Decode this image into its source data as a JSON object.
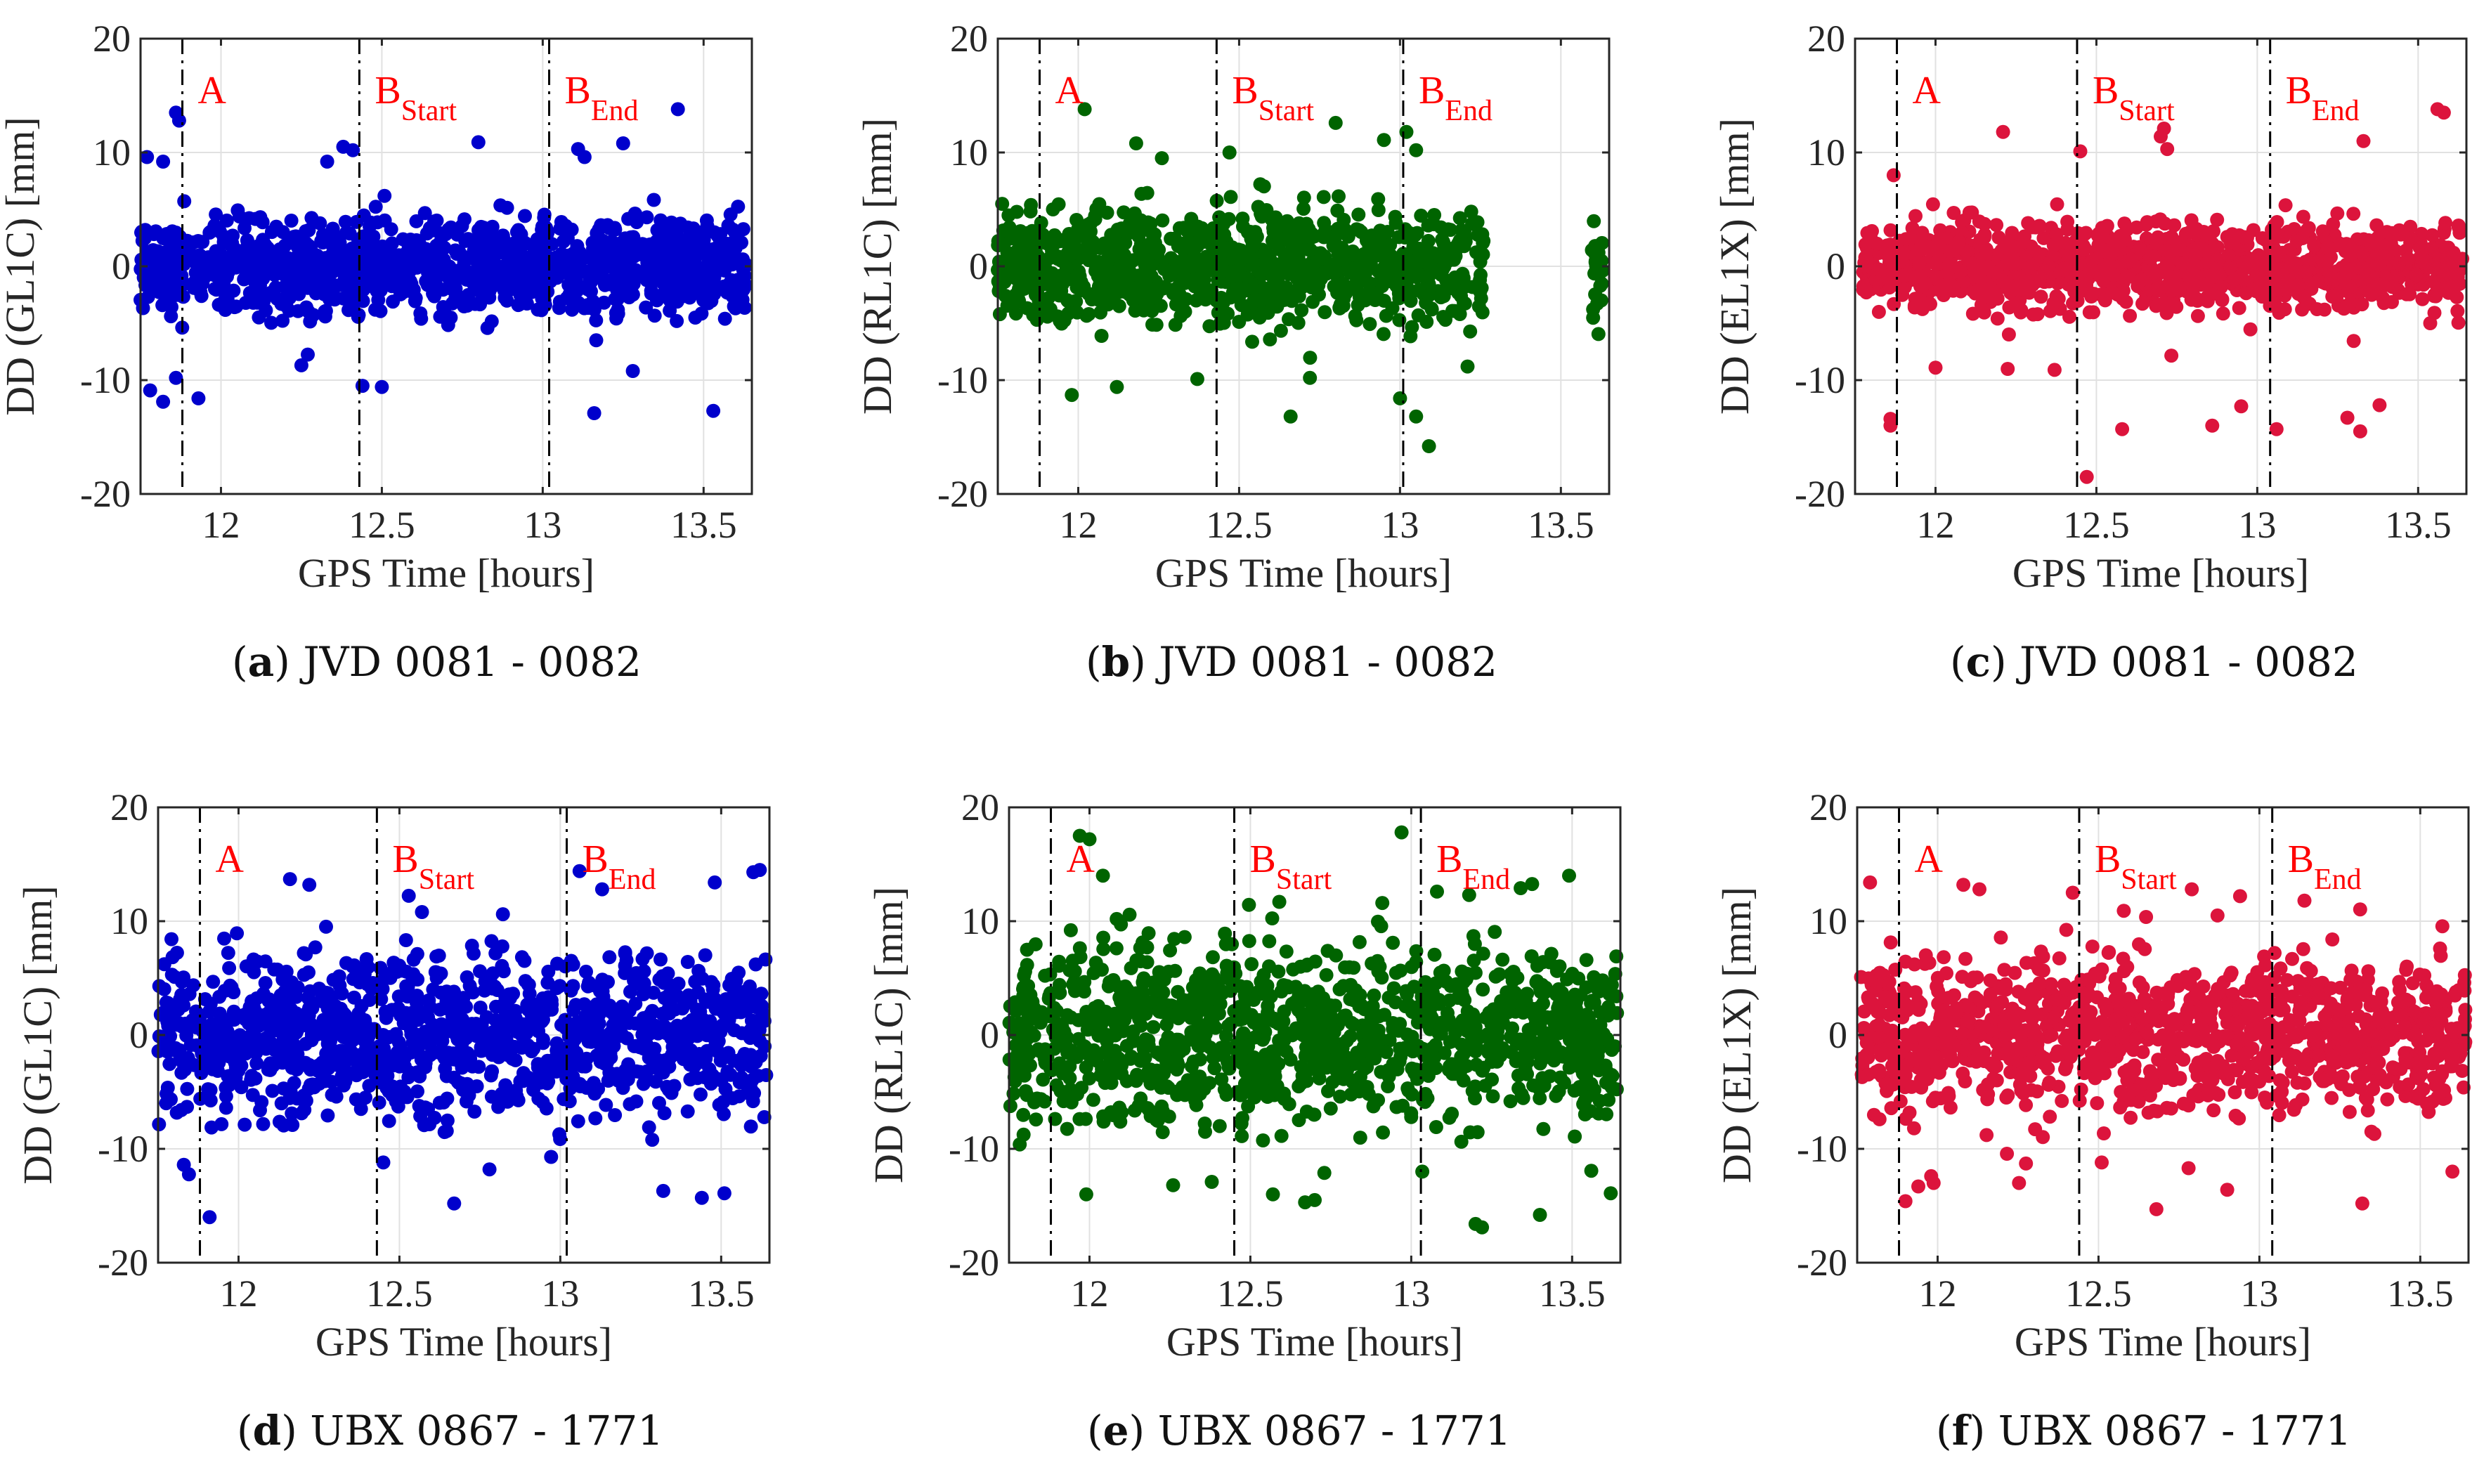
{
  "panels": [
    {
      "label": "a",
      "caption": "JVD 0081 - 0082",
      "chart_data": {
        "type": "scatter",
        "xlabel": "GPS Time [hours]",
        "ylabel": "DD (GL1C) [mm]",
        "xlim": [
          11.75,
          13.65
        ],
        "ylim": [
          -20,
          20
        ],
        "xticks": [
          12,
          12.5,
          13,
          13.5
        ],
        "yticks": [
          -20,
          -10,
          0,
          10,
          20
        ],
        "grid": true,
        "color": "#0000cc",
        "markers": [
          {
            "x": 11.88,
            "label": "A"
          },
          {
            "x": 12.43,
            "label": "B",
            "sub": "Start"
          },
          {
            "x": 13.02,
            "label": "B",
            "sub": "End"
          }
        ],
        "series_ranges": [
          {
            "from": 11.75,
            "to": 13.63
          }
        ],
        "spread": {
          "core": 2.0,
          "max": 13
        },
        "outliers": [
          [
            11.86,
            13.5
          ],
          [
            11.87,
            12.8
          ],
          [
            12.38,
            10.5
          ],
          [
            12.41,
            10.2
          ],
          [
            12.33,
            9.2
          ],
          [
            12.8,
            10.9
          ],
          [
            13.42,
            13.8
          ],
          [
            13.11,
            10.3
          ],
          [
            13.13,
            9.6
          ],
          [
            13.25,
            10.8
          ],
          [
            11.77,
            9.6
          ],
          [
            11.82,
            9.2
          ],
          [
            11.78,
            -10.9
          ],
          [
            11.82,
            -11.9
          ],
          [
            11.86,
            -9.8
          ],
          [
            11.93,
            -11.6
          ],
          [
            12.44,
            -10.5
          ],
          [
            12.5,
            -10.6
          ],
          [
            13.16,
            -12.9
          ],
          [
            13.53,
            -12.7
          ],
          [
            13.28,
            -9.2
          ],
          [
            12.25,
            -8.7
          ]
        ],
        "seed": 11
      }
    },
    {
      "label": "b",
      "caption": "JVD 0081 - 0082",
      "chart_data": {
        "type": "scatter",
        "xlabel": "GPS Time [hours]",
        "ylabel": "DD (RL1C) [mm]",
        "xlim": [
          11.75,
          13.65
        ],
        "ylim": [
          -20,
          20
        ],
        "xticks": [
          12,
          12.5,
          13,
          13.5
        ],
        "yticks": [
          -20,
          -10,
          0,
          10,
          20
        ],
        "grid": true,
        "color": "#006400",
        "markers": [
          {
            "x": 11.88,
            "label": "A"
          },
          {
            "x": 12.43,
            "label": "B",
            "sub": "Start"
          },
          {
            "x": 13.01,
            "label": "B",
            "sub": "End"
          }
        ],
        "series_ranges": [
          {
            "from": 11.75,
            "to": 13.26
          },
          {
            "from": 13.59,
            "to": 13.63
          }
        ],
        "spread": {
          "core": 2.4,
          "max": 13
        },
        "outliers": [
          [
            12.02,
            13.8
          ],
          [
            12.8,
            12.6
          ],
          [
            12.95,
            11.1
          ],
          [
            13.02,
            11.8
          ],
          [
            13.05,
            10.2
          ],
          [
            12.18,
            10.8
          ],
          [
            12.26,
            9.5
          ],
          [
            12.47,
            10.0
          ],
          [
            13.09,
            -15.8
          ],
          [
            13.05,
            -13.2
          ],
          [
            13.0,
            -11.6
          ],
          [
            12.66,
            -13.2
          ],
          [
            12.37,
            -9.9
          ],
          [
            11.98,
            -11.3
          ],
          [
            12.12,
            -10.6
          ],
          [
            12.72,
            -9.8
          ],
          [
            13.21,
            -8.8
          ]
        ],
        "seed": 23
      }
    },
    {
      "label": "c",
      "caption": "JVD 0081 - 0082",
      "chart_data": {
        "type": "scatter",
        "xlabel": "GPS Time [hours]",
        "ylabel": "DD (EL1X) [mm]",
        "xlim": [
          11.75,
          13.65
        ],
        "ylim": [
          -20,
          20
        ],
        "xticks": [
          12,
          12.5,
          13,
          13.5
        ],
        "yticks": [
          -20,
          -10,
          0,
          10,
          20
        ],
        "grid": true,
        "color": "#dc143c",
        "markers": [
          {
            "x": 11.88,
            "label": "A"
          },
          {
            "x": 12.44,
            "label": "B",
            "sub": "Start"
          },
          {
            "x": 13.04,
            "label": "B",
            "sub": "End"
          }
        ],
        "series_ranges": [
          {
            "from": 11.77,
            "to": 13.64
          }
        ],
        "spread": {
          "core": 1.8,
          "max": 12
        },
        "outliers": [
          [
            12.21,
            11.8
          ],
          [
            12.45,
            10.1
          ],
          [
            12.7,
            11.4
          ],
          [
            12.72,
            10.3
          ],
          [
            13.33,
            11.0
          ],
          [
            13.56,
            13.8
          ],
          [
            13.58,
            13.5
          ],
          [
            11.87,
            8.0
          ],
          [
            12.71,
            12.1
          ],
          [
            12.47,
            -18.5
          ],
          [
            13.32,
            -14.5
          ],
          [
            13.06,
            -14.3
          ],
          [
            11.86,
            -14.0
          ],
          [
            11.86,
            -13.4
          ],
          [
            12.58,
            -14.3
          ],
          [
            12.95,
            -12.3
          ],
          [
            12.86,
            -14.0
          ],
          [
            13.38,
            -12.2
          ],
          [
            13.28,
            -13.3
          ],
          [
            12.0,
            -8.9
          ],
          [
            12.37,
            -9.1
          ]
        ],
        "seed": 37
      }
    },
    {
      "label": "d",
      "caption": "UBX 0867 - 1771",
      "chart_data": {
        "type": "scatter",
        "xlabel": "GPS Time [hours]",
        "ylabel": "DD (GL1C) [mm]",
        "xlim": [
          11.75,
          13.65
        ],
        "ylim": [
          -20,
          20
        ],
        "xticks": [
          12,
          12.5,
          13,
          13.5
        ],
        "yticks": [
          -20,
          -10,
          0,
          10,
          20
        ],
        "grid": true,
        "color": "#0000cc",
        "markers": [
          {
            "x": 11.88,
            "label": "A"
          },
          {
            "x": 12.43,
            "label": "B",
            "sub": "Start"
          },
          {
            "x": 13.02,
            "label": "B",
            "sub": "End"
          }
        ],
        "series_ranges": [
          {
            "from": 11.75,
            "to": 13.64
          }
        ],
        "spread": {
          "core": 3.4,
          "max": 14
        },
        "outliers": [
          [
            13.06,
            14.4
          ],
          [
            13.62,
            14.5
          ],
          [
            13.6,
            14.3
          ],
          [
            13.48,
            13.4
          ],
          [
            12.16,
            13.7
          ],
          [
            12.22,
            13.2
          ],
          [
            12.57,
            10.8
          ],
          [
            13.13,
            12.8
          ],
          [
            11.91,
            -16.0
          ],
          [
            12.67,
            -14.8
          ],
          [
            13.32,
            -13.7
          ],
          [
            13.44,
            -14.3
          ],
          [
            13.51,
            -13.9
          ],
          [
            11.83,
            -11.4
          ],
          [
            12.45,
            -11.2
          ],
          [
            12.78,
            -11.8
          ]
        ],
        "seed": 53
      }
    },
    {
      "label": "e",
      "caption": "UBX 0867 - 1771",
      "chart_data": {
        "type": "scatter",
        "xlabel": "GPS Time [hours]",
        "ylabel": "DD (RL1C) [mm]",
        "xlim": [
          11.75,
          13.65
        ],
        "ylim": [
          -20,
          20
        ],
        "xticks": [
          12,
          12.5,
          13,
          13.5
        ],
        "yticks": [
          -20,
          -10,
          0,
          10,
          20
        ],
        "grid": true,
        "color": "#006400",
        "markers": [
          {
            "x": 11.88,
            "label": "A"
          },
          {
            "x": 12.45,
            "label": "B",
            "sub": "Start"
          },
          {
            "x": 13.03,
            "label": "B",
            "sub": "End"
          }
        ],
        "series_ranges": [
          {
            "from": 11.75,
            "to": 13.64
          }
        ],
        "spread": {
          "core": 3.6,
          "max": 14
        },
        "outliers": [
          [
            11.97,
            17.5
          ],
          [
            12.0,
            17.2
          ],
          [
            12.97,
            17.8
          ],
          [
            12.91,
            11.6
          ],
          [
            13.08,
            12.6
          ],
          [
            13.18,
            12.3
          ],
          [
            13.34,
            12.9
          ],
          [
            12.59,
            11.7
          ],
          [
            13.2,
            -16.6
          ],
          [
            13.22,
            -16.9
          ],
          [
            13.4,
            -15.8
          ],
          [
            12.67,
            -14.7
          ],
          [
            12.7,
            -14.5
          ],
          [
            12.57,
            -14.0
          ],
          [
            13.62,
            -13.9
          ],
          [
            11.99,
            -14.0
          ],
          [
            12.26,
            -13.2
          ],
          [
            12.38,
            -12.9
          ]
        ],
        "seed": 71
      }
    },
    {
      "label": "f",
      "caption": "UBX 0867 - 1771",
      "chart_data": {
        "type": "scatter",
        "xlabel": "GPS Time [hours]",
        "ylabel": "DD (EL1X) [mm]",
        "xlim": [
          11.75,
          13.65
        ],
        "ylim": [
          -20,
          20
        ],
        "xticks": [
          12,
          12.5,
          13,
          13.5
        ],
        "yticks": [
          -20,
          -10,
          0,
          10,
          20
        ],
        "grid": true,
        "color": "#dc143c",
        "markers": [
          {
            "x": 11.88,
            "label": "A"
          },
          {
            "x": 12.44,
            "label": "B",
            "sub": "Start"
          },
          {
            "x": 13.04,
            "label": "B",
            "sub": "End"
          }
        ],
        "series_ranges": [
          {
            "from": 11.76,
            "to": 13.64
          }
        ],
        "spread": {
          "core": 3.2,
          "max": 13
        },
        "outliers": [
          [
            11.79,
            13.4
          ],
          [
            12.08,
            13.2
          ],
          [
            12.13,
            12.8
          ],
          [
            12.42,
            12.5
          ],
          [
            12.79,
            12.8
          ],
          [
            12.87,
            10.5
          ],
          [
            13.14,
            11.8
          ],
          [
            12.94,
            12.2
          ],
          [
            12.68,
            -15.3
          ],
          [
            13.32,
            -14.8
          ],
          [
            12.9,
            -13.6
          ],
          [
            11.9,
            -14.6
          ],
          [
            11.94,
            -13.3
          ],
          [
            11.98,
            -12.4
          ],
          [
            13.6,
            -12.0
          ],
          [
            12.51,
            -11.2
          ],
          [
            12.78,
            -11.7
          ]
        ],
        "seed": 97
      }
    }
  ]
}
